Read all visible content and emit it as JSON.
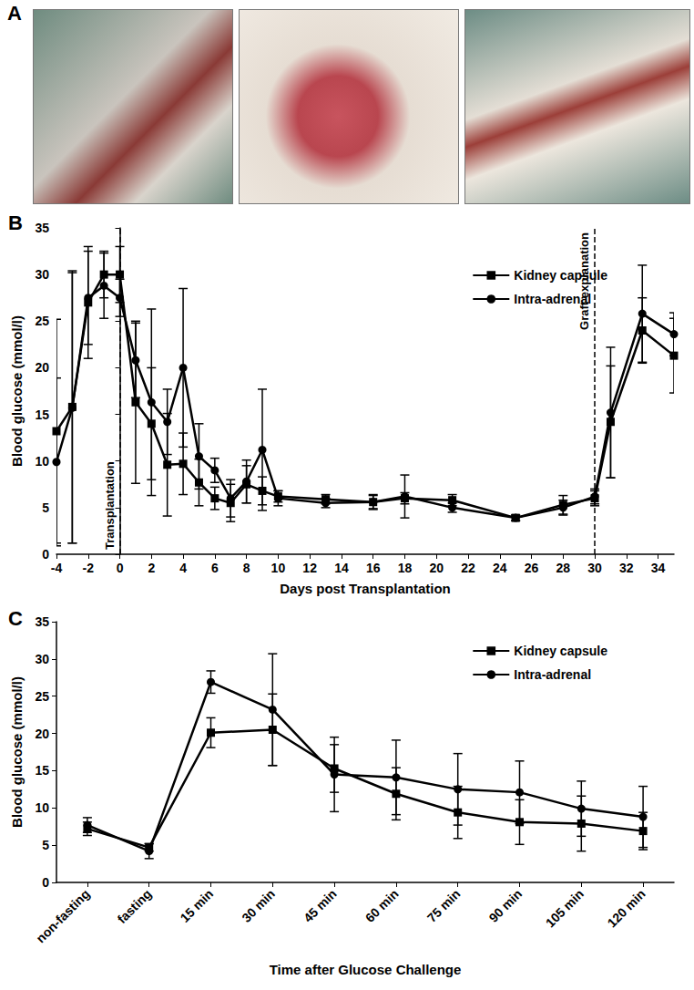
{
  "figure": {
    "panel_label": "A"
  },
  "chart_data": [
    {
      "type": "line",
      "title": "B",
      "x_label": "Days post Transplantation",
      "y_label": "Blood glucose (mmol/l)",
      "x": [
        -4,
        -3,
        -2,
        -1,
        0,
        1,
        2,
        3,
        4,
        5,
        6,
        7,
        8,
        9,
        10,
        13,
        16,
        18,
        21,
        25,
        28,
        30,
        31,
        33,
        35
      ],
      "xlim": [
        -4,
        35
      ],
      "xticks": [
        -4,
        -2,
        0,
        2,
        4,
        6,
        8,
        10,
        12,
        14,
        16,
        18,
        20,
        22,
        24,
        26,
        28,
        30,
        32,
        34
      ],
      "ylim": [
        0,
        35
      ],
      "yticks": [
        0,
        5,
        10,
        15,
        20,
        25,
        30,
        35
      ],
      "series": [
        {
          "name": "Kidney capsule",
          "color": "#000000",
          "marker": "square",
          "values": [
            13.2,
            15.8,
            27,
            30,
            30,
            16.3,
            14,
            9.6,
            9.7,
            7.7,
            6,
            5.5,
            7.5,
            6.8,
            6.2,
            5.9,
            5.6,
            6.0,
            5.8,
            3.9,
            5.3,
            6.0,
            14.2,
            24,
            21.3
          ],
          "errors": [
            12,
            14.6,
            6,
            2.5,
            3,
            8.7,
            6,
            5.5,
            3.3,
            2.5,
            1.2,
            2,
            2,
            1.5,
            0.6,
            0.5,
            0.7,
            0.6,
            0.6,
            0.3,
            1,
            0.8,
            6,
            3.5,
            4
          ]
        },
        {
          "name": "Intra-adrenal",
          "color": "#000000",
          "marker": "circle",
          "values": [
            9.9,
            15.7,
            27.5,
            28.8,
            27.5,
            20.8,
            16.3,
            14.2,
            20,
            10.5,
            9,
            6,
            7.8,
            11.2,
            6,
            5.5,
            5.6,
            6.2,
            5,
            3.9,
            5,
            6.2,
            15.2,
            25.8,
            23.6
          ],
          "errors": [
            9,
            14.5,
            5,
            3.5,
            2,
            4,
            10,
            3.5,
            8.5,
            3.5,
            1.3,
            2,
            2.3,
            6.5,
            0.8,
            0.5,
            0.8,
            2.3,
            0.5,
            0.3,
            0.8,
            0.8,
            7,
            5.2,
            2.3
          ]
        }
      ],
      "annotations": [
        {
          "x": 0,
          "text": "Transplantation"
        },
        {
          "x": 30,
          "text": "Graft explanation"
        }
      ],
      "legend": "right",
      "grid": false
    },
    {
      "type": "line",
      "title": "C",
      "x_label": "Time after Glucose Challenge",
      "y_label": "Blood glucose (mmol/l)",
      "categories": [
        "non-fasting",
        "fasting",
        "15 min",
        "30 min",
        "45 min",
        "60 min",
        "75 min",
        "90 min",
        "105 min",
        "120 min"
      ],
      "ylim": [
        0,
        35
      ],
      "yticks": [
        0,
        5,
        10,
        15,
        20,
        25,
        30,
        35
      ],
      "series": [
        {
          "name": "Kidney capsule",
          "color": "#000000",
          "marker": "square",
          "values": [
            7.2,
            4.7,
            20.1,
            20.5,
            15.3,
            11.9,
            9.4,
            8.1,
            7.9,
            6.9
          ],
          "errors": [
            0.9,
            0.5,
            2,
            4.8,
            3.2,
            3.5,
            3.5,
            3,
            3.7,
            2.5
          ]
        },
        {
          "name": "Intra-adrenal",
          "color": "#000000",
          "marker": "circle",
          "values": [
            7.7,
            4.2,
            26.9,
            23.2,
            14.5,
            14.1,
            12.5,
            12.1,
            9.9,
            8.8
          ],
          "errors": [
            1,
            1,
            1.5,
            7.5,
            5,
            5,
            4.8,
            4.2,
            3.7,
            4.1
          ]
        }
      ],
      "legend": "right",
      "grid": false
    }
  ]
}
